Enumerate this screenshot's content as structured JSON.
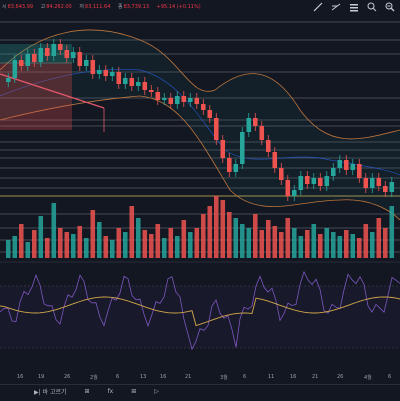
{
  "ohlc": {
    "open_label": "시",
    "open": "83,643.99",
    "high_label": "고",
    "high": "84,262.00",
    "low_label": "저",
    "low": "83,111.64",
    "close_label": "종",
    "close": "83,739.13",
    "change": "+95.14 (+0.11%)"
  },
  "toolbar": {
    "tools": [
      "line-tool-icon",
      "fib-tool-icon",
      "text-tool-icon",
      "measure-tool-icon",
      "zoom-tool-icon"
    ]
  },
  "xaxis": {
    "labels": [
      "16",
      "19",
      "26",
      "2월",
      "6",
      "13",
      "16",
      "21",
      "3월",
      "6",
      "11",
      "16",
      "21",
      "26",
      "4월",
      "6"
    ]
  },
  "bottom_bar": {
    "nav_items": [
      "▶| 바 고르기",
      "⊞",
      "fx",
      "⊞",
      "▷"
    ]
  },
  "colors": {
    "up": "#26a69a",
    "down": "#ef5350",
    "band": "#c4753a",
    "rsi": "#7e57c2",
    "signal": "#d4a84a",
    "bg": "#131722"
  },
  "chart_data": {
    "type": "candlestick",
    "candles": [
      {
        "o": 82,
        "c": 78
      },
      {
        "o": 78,
        "c": 60
      },
      {
        "o": 60,
        "c": 66
      },
      {
        "o": 66,
        "c": 54
      },
      {
        "o": 54,
        "c": 62
      },
      {
        "o": 62,
        "c": 48
      },
      {
        "o": 48,
        "c": 56
      },
      {
        "o": 56,
        "c": 44
      },
      {
        "o": 44,
        "c": 50
      },
      {
        "o": 50,
        "c": 58
      },
      {
        "o": 58,
        "c": 52
      },
      {
        "o": 52,
        "c": 66
      },
      {
        "o": 66,
        "c": 60
      },
      {
        "o": 60,
        "c": 74
      },
      {
        "o": 74,
        "c": 70
      },
      {
        "o": 70,
        "c": 76
      },
      {
        "o": 76,
        "c": 72
      },
      {
        "o": 72,
        "c": 84
      },
      {
        "o": 84,
        "c": 78
      },
      {
        "o": 78,
        "c": 86
      },
      {
        "o": 86,
        "c": 82
      },
      {
        "o": 82,
        "c": 90
      },
      {
        "o": 90,
        "c": 92
      },
      {
        "o": 92,
        "c": 100
      },
      {
        "o": 100,
        "c": 98
      },
      {
        "o": 98,
        "c": 104
      },
      {
        "o": 104,
        "c": 96
      },
      {
        "o": 96,
        "c": 102
      },
      {
        "o": 102,
        "c": 98
      },
      {
        "o": 98,
        "c": 104
      },
      {
        "o": 104,
        "c": 110
      },
      {
        "o": 110,
        "c": 118
      },
      {
        "o": 118,
        "c": 140
      },
      {
        "o": 140,
        "c": 158
      },
      {
        "o": 158,
        "c": 172
      },
      {
        "o": 172,
        "c": 164
      },
      {
        "o": 164,
        "c": 132
      },
      {
        "o": 132,
        "c": 118
      },
      {
        "o": 118,
        "c": 126
      },
      {
        "o": 126,
        "c": 140
      },
      {
        "o": 140,
        "c": 152
      },
      {
        "o": 152,
        "c": 168
      },
      {
        "o": 168,
        "c": 180
      },
      {
        "o": 180,
        "c": 196
      },
      {
        "o": 196,
        "c": 190
      },
      {
        "o": 190,
        "c": 176
      },
      {
        "o": 176,
        "c": 184
      },
      {
        "o": 184,
        "c": 178
      },
      {
        "o": 178,
        "c": 186
      },
      {
        "o": 186,
        "c": 176
      },
      {
        "o": 176,
        "c": 168
      },
      {
        "o": 168,
        "c": 160
      },
      {
        "o": 160,
        "c": 170
      },
      {
        "o": 170,
        "c": 164
      },
      {
        "o": 164,
        "c": 178
      },
      {
        "o": 178,
        "c": 188
      },
      {
        "o": 188,
        "c": 178
      },
      {
        "o": 178,
        "c": 186
      },
      {
        "o": 186,
        "c": 192
      },
      {
        "o": 192,
        "c": 182
      }
    ],
    "volumes": [
      18,
      22,
      34,
      16,
      28,
      42,
      20,
      55,
      30,
      26,
      24,
      32,
      20,
      48,
      36,
      22,
      18,
      30,
      26,
      52,
      40,
      28,
      24,
      34,
      20,
      30,
      22,
      38,
      26,
      30,
      44,
      52,
      62,
      58,
      46,
      40,
      34,
      30,
      44,
      28,
      38,
      32,
      26,
      40,
      30,
      22,
      28,
      34,
      24,
      30,
      26,
      22,
      28,
      24,
      20,
      34,
      26,
      40,
      30,
      52
    ]
  }
}
